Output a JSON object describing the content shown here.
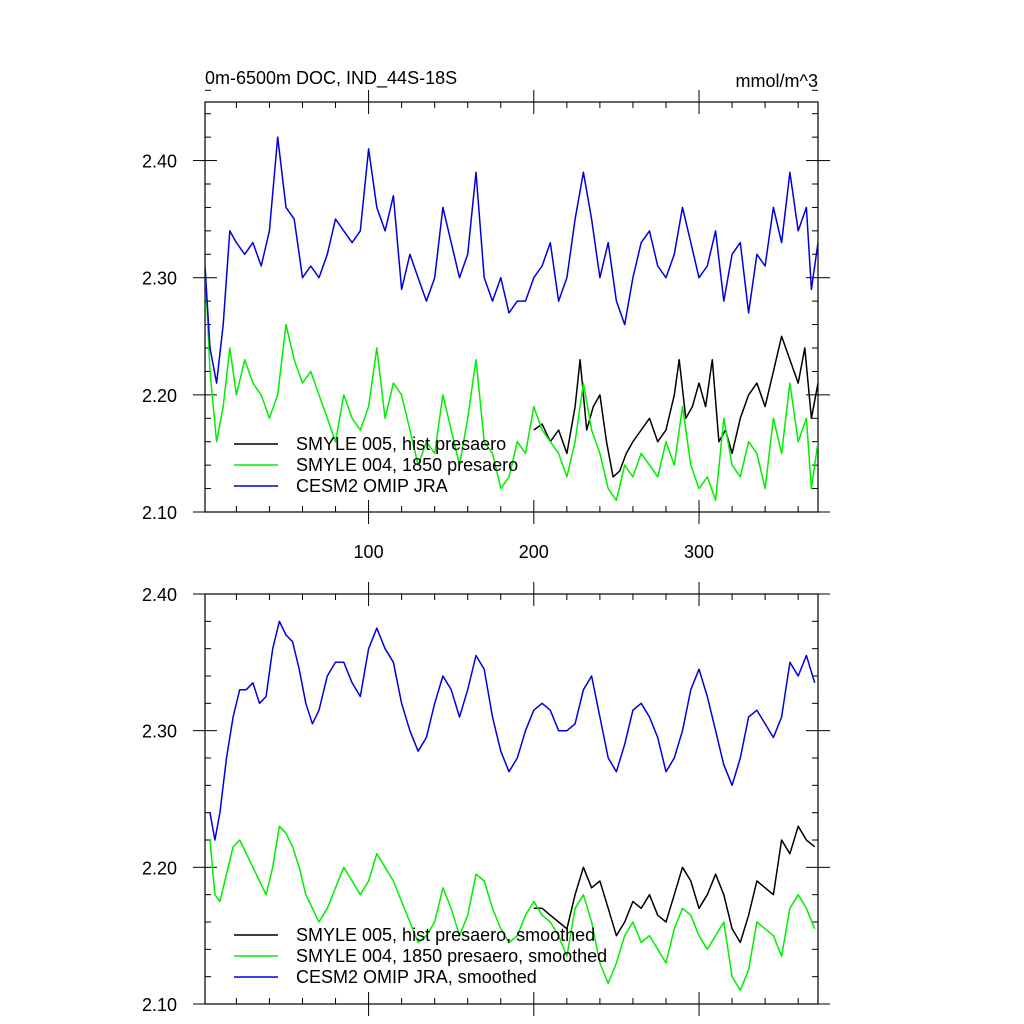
{
  "title_left": "0m-6500m DOC, IND_44S-18S",
  "title_right": "mmol/m^3",
  "colors": {
    "hist": "#000000",
    "p1850": "#00ee00",
    "omip": "#0000dd"
  },
  "chart_data": [
    {
      "type": "line",
      "title": "0m-6500m DOC, IND_44S-18S",
      "units": "mmol/m^3",
      "xlim": [
        1,
        372
      ],
      "ylim": [
        2.1,
        2.45
      ],
      "x_ticks": [
        100,
        200,
        300
      ],
      "y_ticks": [
        2.1,
        2.2,
        2.3,
        2.4
      ],
      "y_tick_labels": [
        "2.10",
        "2.20",
        "2.30",
        "2.40"
      ],
      "grid": false,
      "legend_position": "bottom-left",
      "series": [
        {
          "name": "SMYLE 005, hist presaero",
          "color_key": "hist",
          "x": [
            200,
            205,
            210,
            215,
            220,
            225,
            228,
            232,
            236,
            240,
            244,
            248,
            252,
            256,
            260,
            265,
            270,
            275,
            280,
            285,
            288,
            292,
            296,
            300,
            304,
            308,
            312,
            316,
            320,
            325,
            330,
            335,
            340,
            345,
            350,
            355,
            360,
            364,
            368,
            372
          ],
          "y": [
            2.17,
            2.175,
            2.16,
            2.17,
            2.15,
            2.19,
            2.23,
            2.17,
            2.19,
            2.2,
            2.16,
            2.13,
            2.135,
            2.15,
            2.16,
            2.17,
            2.18,
            2.16,
            2.17,
            2.2,
            2.23,
            2.18,
            2.19,
            2.21,
            2.19,
            2.23,
            2.16,
            2.17,
            2.15,
            2.18,
            2.2,
            2.21,
            2.19,
            2.22,
            2.25,
            2.23,
            2.21,
            2.24,
            2.18,
            2.21
          ]
        },
        {
          "name": "SMYLE 004, 1850 presaero",
          "color_key": "p1850",
          "x": [
            1,
            4,
            8,
            12,
            16,
            20,
            25,
            30,
            35,
            40,
            45,
            50,
            55,
            60,
            65,
            70,
            75,
            80,
            85,
            90,
            95,
            100,
            105,
            110,
            115,
            120,
            125,
            130,
            135,
            140,
            145,
            150,
            155,
            160,
            165,
            170,
            175,
            180,
            185,
            190,
            195,
            200,
            205,
            210,
            215,
            220,
            225,
            230,
            235,
            240,
            245,
            250,
            255,
            260,
            265,
            270,
            275,
            280,
            285,
            290,
            295,
            300,
            305,
            310,
            315,
            320,
            325,
            330,
            335,
            340,
            345,
            350,
            355,
            360,
            365,
            368,
            372
          ],
          "y": [
            2.31,
            2.22,
            2.16,
            2.19,
            2.24,
            2.2,
            2.23,
            2.21,
            2.2,
            2.18,
            2.2,
            2.26,
            2.23,
            2.21,
            2.22,
            2.2,
            2.18,
            2.16,
            2.2,
            2.18,
            2.17,
            2.19,
            2.24,
            2.18,
            2.21,
            2.2,
            2.17,
            2.14,
            2.16,
            2.15,
            2.2,
            2.17,
            2.14,
            2.18,
            2.23,
            2.16,
            2.15,
            2.12,
            2.13,
            2.16,
            2.15,
            2.19,
            2.17,
            2.16,
            2.15,
            2.13,
            2.16,
            2.21,
            2.17,
            2.15,
            2.12,
            2.11,
            2.14,
            2.13,
            2.15,
            2.14,
            2.13,
            2.16,
            2.14,
            2.19,
            2.14,
            2.12,
            2.13,
            2.11,
            2.18,
            2.14,
            2.13,
            2.16,
            2.15,
            2.12,
            2.18,
            2.15,
            2.21,
            2.16,
            2.18,
            2.12,
            2.16
          ]
        },
        {
          "name": "CESM2 OMIP JRA",
          "color_key": "omip",
          "x": [
            1,
            4,
            8,
            12,
            16,
            20,
            25,
            30,
            35,
            40,
            45,
            50,
            55,
            60,
            65,
            70,
            75,
            80,
            85,
            90,
            95,
            100,
            105,
            110,
            115,
            120,
            125,
            130,
            135,
            140,
            145,
            150,
            155,
            160,
            165,
            170,
            175,
            180,
            185,
            190,
            195,
            200,
            205,
            210,
            215,
            220,
            225,
            230,
            235,
            240,
            245,
            250,
            255,
            260,
            265,
            270,
            275,
            280,
            285,
            290,
            295,
            300,
            305,
            310,
            315,
            320,
            325,
            330,
            335,
            340,
            345,
            350,
            355,
            360,
            365,
            368,
            372
          ],
          "y": [
            2.31,
            2.24,
            2.21,
            2.26,
            2.34,
            2.33,
            2.32,
            2.33,
            2.31,
            2.34,
            2.42,
            2.36,
            2.35,
            2.3,
            2.31,
            2.3,
            2.32,
            2.35,
            2.34,
            2.33,
            2.34,
            2.41,
            2.36,
            2.34,
            2.37,
            2.29,
            2.32,
            2.3,
            2.28,
            2.3,
            2.36,
            2.33,
            2.3,
            2.32,
            2.39,
            2.3,
            2.28,
            2.3,
            2.27,
            2.28,
            2.28,
            2.3,
            2.31,
            2.33,
            2.28,
            2.3,
            2.35,
            2.39,
            2.35,
            2.3,
            2.33,
            2.28,
            2.26,
            2.3,
            2.33,
            2.34,
            2.31,
            2.3,
            2.32,
            2.36,
            2.33,
            2.3,
            2.31,
            2.34,
            2.28,
            2.32,
            2.33,
            2.27,
            2.32,
            2.31,
            2.36,
            2.33,
            2.39,
            2.34,
            2.36,
            2.29,
            2.33
          ]
        }
      ]
    },
    {
      "type": "line",
      "xlim": [
        1,
        372
      ],
      "ylim": [
        2.1,
        2.4
      ],
      "y_ticks": [
        2.1,
        2.2,
        2.3,
        2.4
      ],
      "y_tick_labels": [
        "2.10",
        "2.20",
        "2.30",
        "2.40"
      ],
      "grid": false,
      "legend_position": "bottom-left",
      "series": [
        {
          "name": "SMYLE 005, hist presaero, smoothed",
          "color_key": "hist",
          "x": [
            200,
            205,
            210,
            215,
            220,
            225,
            230,
            235,
            240,
            245,
            250,
            255,
            260,
            265,
            270,
            275,
            280,
            285,
            290,
            295,
            300,
            305,
            310,
            315,
            320,
            325,
            330,
            335,
            340,
            345,
            350,
            355,
            360,
            365,
            370
          ],
          "y": [
            2.17,
            2.17,
            2.165,
            2.16,
            2.155,
            2.18,
            2.2,
            2.185,
            2.19,
            2.17,
            2.15,
            2.16,
            2.175,
            2.17,
            2.18,
            2.165,
            2.16,
            2.18,
            2.2,
            2.19,
            2.17,
            2.18,
            2.195,
            2.18,
            2.155,
            2.145,
            2.165,
            2.19,
            2.185,
            2.18,
            2.22,
            2.21,
            2.23,
            2.22,
            2.215
          ]
        },
        {
          "name": "SMYLE 004, 1850 presaero, smoothed",
          "color_key": "p1850",
          "x": [
            4,
            7,
            10,
            14,
            18,
            22,
            26,
            30,
            34,
            38,
            42,
            46,
            50,
            54,
            58,
            62,
            66,
            70,
            75,
            80,
            85,
            90,
            95,
            100,
            105,
            110,
            115,
            120,
            125,
            130,
            135,
            140,
            145,
            150,
            155,
            160,
            165,
            170,
            175,
            180,
            185,
            190,
            195,
            200,
            205,
            210,
            215,
            220,
            225,
            230,
            235,
            240,
            245,
            250,
            255,
            260,
            265,
            270,
            275,
            280,
            285,
            290,
            295,
            300,
            305,
            310,
            315,
            320,
            325,
            330,
            335,
            340,
            345,
            350,
            355,
            360,
            365,
            370
          ],
          "y": [
            2.22,
            2.18,
            2.175,
            2.195,
            2.215,
            2.22,
            2.21,
            2.2,
            2.19,
            2.18,
            2.2,
            2.23,
            2.225,
            2.215,
            2.2,
            2.18,
            2.17,
            2.16,
            2.17,
            2.185,
            2.2,
            2.19,
            2.18,
            2.19,
            2.21,
            2.2,
            2.19,
            2.175,
            2.16,
            2.145,
            2.15,
            2.16,
            2.185,
            2.17,
            2.15,
            2.165,
            2.195,
            2.19,
            2.17,
            2.155,
            2.145,
            2.15,
            2.165,
            2.175,
            2.165,
            2.16,
            2.15,
            2.135,
            2.17,
            2.18,
            2.16,
            2.13,
            2.115,
            2.13,
            2.15,
            2.16,
            2.145,
            2.15,
            2.14,
            2.13,
            2.155,
            2.17,
            2.165,
            2.15,
            2.14,
            2.15,
            2.16,
            2.12,
            2.11,
            2.125,
            2.16,
            2.155,
            2.15,
            2.135,
            2.17,
            2.18,
            2.17,
            2.155
          ]
        },
        {
          "name": "CESM2 OMIP JRA, smoothed",
          "color_key": "omip",
          "x": [
            4,
            7,
            10,
            14,
            18,
            22,
            26,
            30,
            34,
            38,
            42,
            46,
            50,
            54,
            58,
            62,
            66,
            70,
            75,
            80,
            85,
            90,
            95,
            100,
            105,
            110,
            115,
            120,
            125,
            130,
            135,
            140,
            145,
            150,
            155,
            160,
            165,
            170,
            175,
            180,
            185,
            190,
            195,
            200,
            205,
            210,
            215,
            220,
            225,
            230,
            235,
            240,
            245,
            250,
            255,
            260,
            265,
            270,
            275,
            280,
            285,
            290,
            295,
            300,
            305,
            310,
            315,
            320,
            325,
            330,
            335,
            340,
            345,
            350,
            355,
            360,
            365,
            370
          ],
          "y": [
            2.24,
            2.22,
            2.24,
            2.28,
            2.31,
            2.33,
            2.33,
            2.335,
            2.32,
            2.325,
            2.36,
            2.38,
            2.37,
            2.365,
            2.345,
            2.32,
            2.305,
            2.315,
            2.34,
            2.35,
            2.35,
            2.335,
            2.325,
            2.36,
            2.375,
            2.36,
            2.35,
            2.32,
            2.3,
            2.285,
            2.295,
            2.32,
            2.34,
            2.33,
            2.31,
            2.33,
            2.355,
            2.345,
            2.31,
            2.285,
            2.27,
            2.28,
            2.3,
            2.315,
            2.32,
            2.315,
            2.3,
            2.3,
            2.305,
            2.33,
            2.34,
            2.31,
            2.28,
            2.27,
            2.29,
            2.315,
            2.32,
            2.31,
            2.295,
            2.27,
            2.28,
            2.3,
            2.33,
            2.345,
            2.325,
            2.3,
            2.275,
            2.26,
            2.28,
            2.31,
            2.315,
            2.305,
            2.295,
            2.31,
            2.35,
            2.34,
            2.355,
            2.335
          ]
        }
      ]
    }
  ]
}
